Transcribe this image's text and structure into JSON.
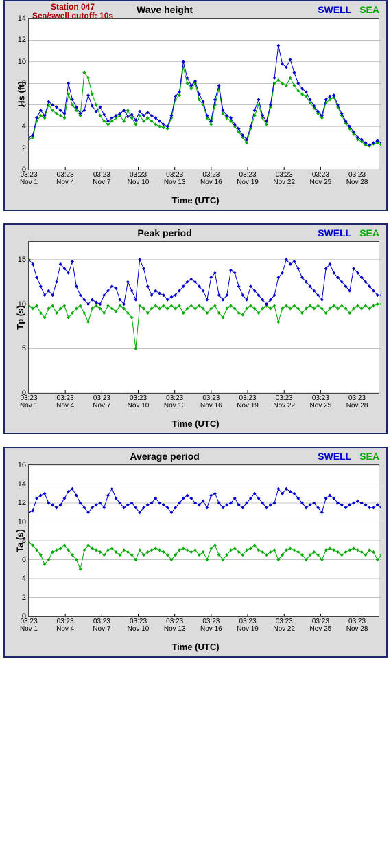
{
  "meta": {
    "station": "Station 047",
    "cutoff": "Sea/swell cutoff: 10s",
    "legend_swell": "SWELL",
    "legend_sea": "SEA",
    "x_axis_label": "Time (UTC)"
  },
  "colors": {
    "swell": "#0000cc",
    "sea": "#00aa00",
    "grid": "#888888",
    "border": "#444444",
    "panel_bg": "#dcdcdc",
    "panel_border": "#1a2a66",
    "station_text": "#aa0000"
  },
  "x_axis": {
    "tick_time": "03:23",
    "tick_dates": [
      "Nov 1",
      "Nov 4",
      "Nov 7",
      "Nov 10",
      "Nov 13",
      "Nov 16",
      "Nov 19",
      "Nov 22",
      "Nov 25",
      "Nov 28"
    ],
    "date_indices": [
      0,
      3,
      6,
      9,
      12,
      15,
      18,
      21,
      24,
      27
    ],
    "n_days": 30
  },
  "charts": [
    {
      "id": "wave-height",
      "title": "Wave height",
      "y_label": "Hs (ft)",
      "ylim": [
        0,
        14
      ],
      "ytick_step": 2,
      "show_station": true,
      "swell_series": [
        3.0,
        3.2,
        4.8,
        5.5,
        5.0,
        6.3,
        6.0,
        5.8,
        5.5,
        5.2,
        8.0,
        6.5,
        5.8,
        5.2,
        5.5,
        6.9,
        5.9,
        5.4,
        5.8,
        5.1,
        4.5,
        4.8,
        5.0,
        5.2,
        5.5,
        4.9,
        5.1,
        4.6,
        5.4,
        5.0,
        5.3,
        5.0,
        4.8,
        4.5,
        4.2,
        4.0,
        5.0,
        6.8,
        7.2,
        10.0,
        8.5,
        7.8,
        8.2,
        7.0,
        6.3,
        5.0,
        4.5,
        6.5,
        7.8,
        5.5,
        5.0,
        4.8,
        4.2,
        3.8,
        3.2,
        2.8,
        4.0,
        5.5,
        6.5,
        5.0,
        4.5,
        6.0,
        8.5,
        11.5,
        9.8,
        9.5,
        10.2,
        9.0,
        8.0,
        7.5,
        7.2,
        6.5,
        5.9,
        5.4,
        5.0,
        6.5,
        6.8,
        6.9,
        6.0,
        5.2,
        4.5,
        4.0,
        3.5,
        3.0,
        2.8,
        2.5,
        2.3,
        2.5,
        2.7,
        2.5
      ],
      "sea_series": [
        2.8,
        3.0,
        4.5,
        5.0,
        4.8,
        6.0,
        5.5,
        5.2,
        5.0,
        4.8,
        7.0,
        6.0,
        5.5,
        5.0,
        9.0,
        8.5,
        7.0,
        6.0,
        5.0,
        4.5,
        4.2,
        4.5,
        4.8,
        5.0,
        4.5,
        5.5,
        4.8,
        4.2,
        5.0,
        4.5,
        4.8,
        4.5,
        4.2,
        4.0,
        3.9,
        3.8,
        4.8,
        6.5,
        6.9,
        9.5,
        8.0,
        7.5,
        8.0,
        6.5,
        6.0,
        4.8,
        4.2,
        6.0,
        7.5,
        5.2,
        4.8,
        4.5,
        4.0,
        3.5,
        3.0,
        2.5,
        3.8,
        5.0,
        6.0,
        4.8,
        4.2,
        5.8,
        8.0,
        8.3,
        8.0,
        7.8,
        8.5,
        7.8,
        7.3,
        7.0,
        6.8,
        6.2,
        5.7,
        5.2,
        4.8,
        6.2,
        6.5,
        6.7,
        5.8,
        5.0,
        4.3,
        3.8,
        3.3,
        2.8,
        2.6,
        2.3,
        2.2,
        2.4,
        2.5,
        2.3
      ]
    },
    {
      "id": "peak-period",
      "title": "Peak period",
      "y_label": "Tp (s)",
      "ylim": [
        0,
        17
      ],
      "ytick_step": 5,
      "yticks": [
        0,
        5,
        10,
        15
      ],
      "show_station": false,
      "swell_series": [
        15.0,
        14.5,
        13.0,
        12.0,
        11.0,
        11.5,
        11.0,
        12.5,
        14.5,
        14.0,
        13.5,
        14.8,
        12.0,
        11.0,
        10.5,
        10.0,
        10.5,
        10.2,
        10.0,
        11.0,
        11.5,
        12.0,
        11.8,
        10.5,
        10.0,
        12.5,
        11.5,
        10.5,
        15.0,
        14.0,
        12.0,
        11.0,
        11.5,
        11.2,
        11.0,
        10.5,
        10.8,
        11.0,
        11.5,
        12.0,
        12.5,
        12.8,
        12.5,
        12.0,
        11.5,
        10.5,
        13.0,
        13.5,
        11.0,
        10.5,
        11.0,
        13.8,
        13.5,
        12.0,
        11.0,
        10.5,
        12.0,
        11.5,
        11.0,
        10.5,
        10.0,
        10.5,
        11.0,
        13.0,
        13.5,
        15.0,
        14.5,
        14.8,
        14.0,
        13.0,
        12.5,
        12.0,
        11.5,
        11.0,
        10.5,
        14.0,
        14.5,
        13.5,
        13.0,
        12.5,
        12.0,
        11.5,
        14.0,
        13.5,
        13.0,
        12.5,
        12.0,
        11.5,
        11.0,
        11.0
      ],
      "sea_series": [
        9.8,
        9.5,
        9.8,
        9.0,
        8.5,
        9.5,
        9.8,
        9.0,
        9.5,
        9.8,
        8.5,
        9.0,
        9.5,
        9.8,
        9.0,
        8.0,
        9.5,
        9.8,
        9.5,
        9.0,
        9.8,
        9.5,
        9.2,
        9.8,
        9.5,
        9.0,
        8.5,
        5.0,
        9.8,
        9.5,
        9.0,
        9.5,
        9.8,
        9.5,
        9.8,
        9.5,
        9.8,
        9.5,
        9.8,
        9.0,
        9.5,
        9.8,
        9.5,
        9.8,
        9.5,
        9.0,
        9.5,
        9.8,
        9.0,
        8.5,
        9.5,
        9.8,
        9.5,
        9.0,
        8.8,
        9.5,
        9.8,
        9.5,
        9.0,
        9.5,
        9.8,
        9.5,
        9.8,
        8.0,
        9.5,
        9.8,
        9.5,
        9.8,
        9.5,
        9.0,
        9.5,
        9.8,
        9.5,
        9.8,
        9.5,
        9.0,
        9.5,
        9.8,
        9.5,
        9.8,
        9.5,
        9.0,
        9.5,
        9.8,
        9.5,
        9.8,
        9.5,
        9.8,
        10.0,
        10.0
      ]
    },
    {
      "id": "average-period",
      "title": "Average period",
      "y_label": "Ta (s)",
      "ylim": [
        0,
        16
      ],
      "ytick_step": 2,
      "show_station": false,
      "swell_series": [
        11.0,
        11.2,
        12.5,
        12.8,
        13.0,
        12.0,
        11.8,
        11.5,
        11.8,
        12.5,
        13.2,
        13.5,
        12.8,
        12.0,
        11.5,
        11.0,
        11.5,
        11.8,
        12.0,
        11.5,
        12.8,
        13.5,
        12.5,
        12.0,
        11.5,
        11.8,
        12.0,
        11.5,
        11.0,
        11.5,
        11.8,
        12.0,
        12.5,
        12.0,
        11.8,
        11.5,
        11.0,
        11.5,
        12.0,
        12.5,
        12.8,
        12.5,
        12.0,
        11.8,
        12.2,
        11.5,
        12.8,
        13.0,
        12.0,
        11.5,
        11.8,
        12.0,
        12.5,
        11.8,
        11.5,
        12.0,
        12.5,
        13.0,
        12.5,
        12.0,
        11.5,
        11.8,
        12.0,
        13.5,
        13.0,
        13.5,
        13.2,
        13.0,
        12.5,
        12.0,
        11.5,
        11.8,
        12.0,
        11.5,
        11.0,
        12.5,
        12.8,
        12.5,
        12.0,
        11.8,
        11.5,
        11.8,
        12.0,
        12.2,
        12.0,
        11.8,
        11.5,
        11.5,
        11.8,
        11.5
      ],
      "sea_series": [
        7.8,
        7.5,
        7.0,
        6.5,
        5.5,
        6.0,
        6.8,
        7.0,
        7.2,
        7.5,
        7.0,
        6.5,
        6.0,
        5.0,
        7.0,
        7.5,
        7.2,
        7.0,
        6.8,
        6.5,
        7.0,
        7.2,
        6.8,
        6.5,
        7.0,
        6.8,
        6.5,
        6.0,
        7.0,
        6.5,
        6.8,
        7.0,
        7.2,
        7.0,
        6.8,
        6.5,
        6.0,
        6.5,
        7.0,
        7.2,
        7.0,
        6.8,
        7.0,
        6.5,
        6.8,
        6.0,
        7.2,
        7.5,
        6.5,
        6.0,
        6.5,
        7.0,
        7.2,
        6.8,
        6.5,
        7.0,
        7.2,
        7.5,
        7.0,
        6.8,
        6.5,
        6.8,
        7.0,
        6.0,
        6.5,
        7.0,
        7.2,
        7.0,
        6.8,
        6.5,
        6.0,
        6.5,
        6.8,
        6.5,
        6.0,
        7.0,
        7.2,
        7.0,
        6.8,
        6.5,
        6.8,
        7.0,
        7.2,
        7.0,
        6.8,
        6.5,
        7.0,
        6.8,
        6.0,
        6.5
      ]
    }
  ]
}
